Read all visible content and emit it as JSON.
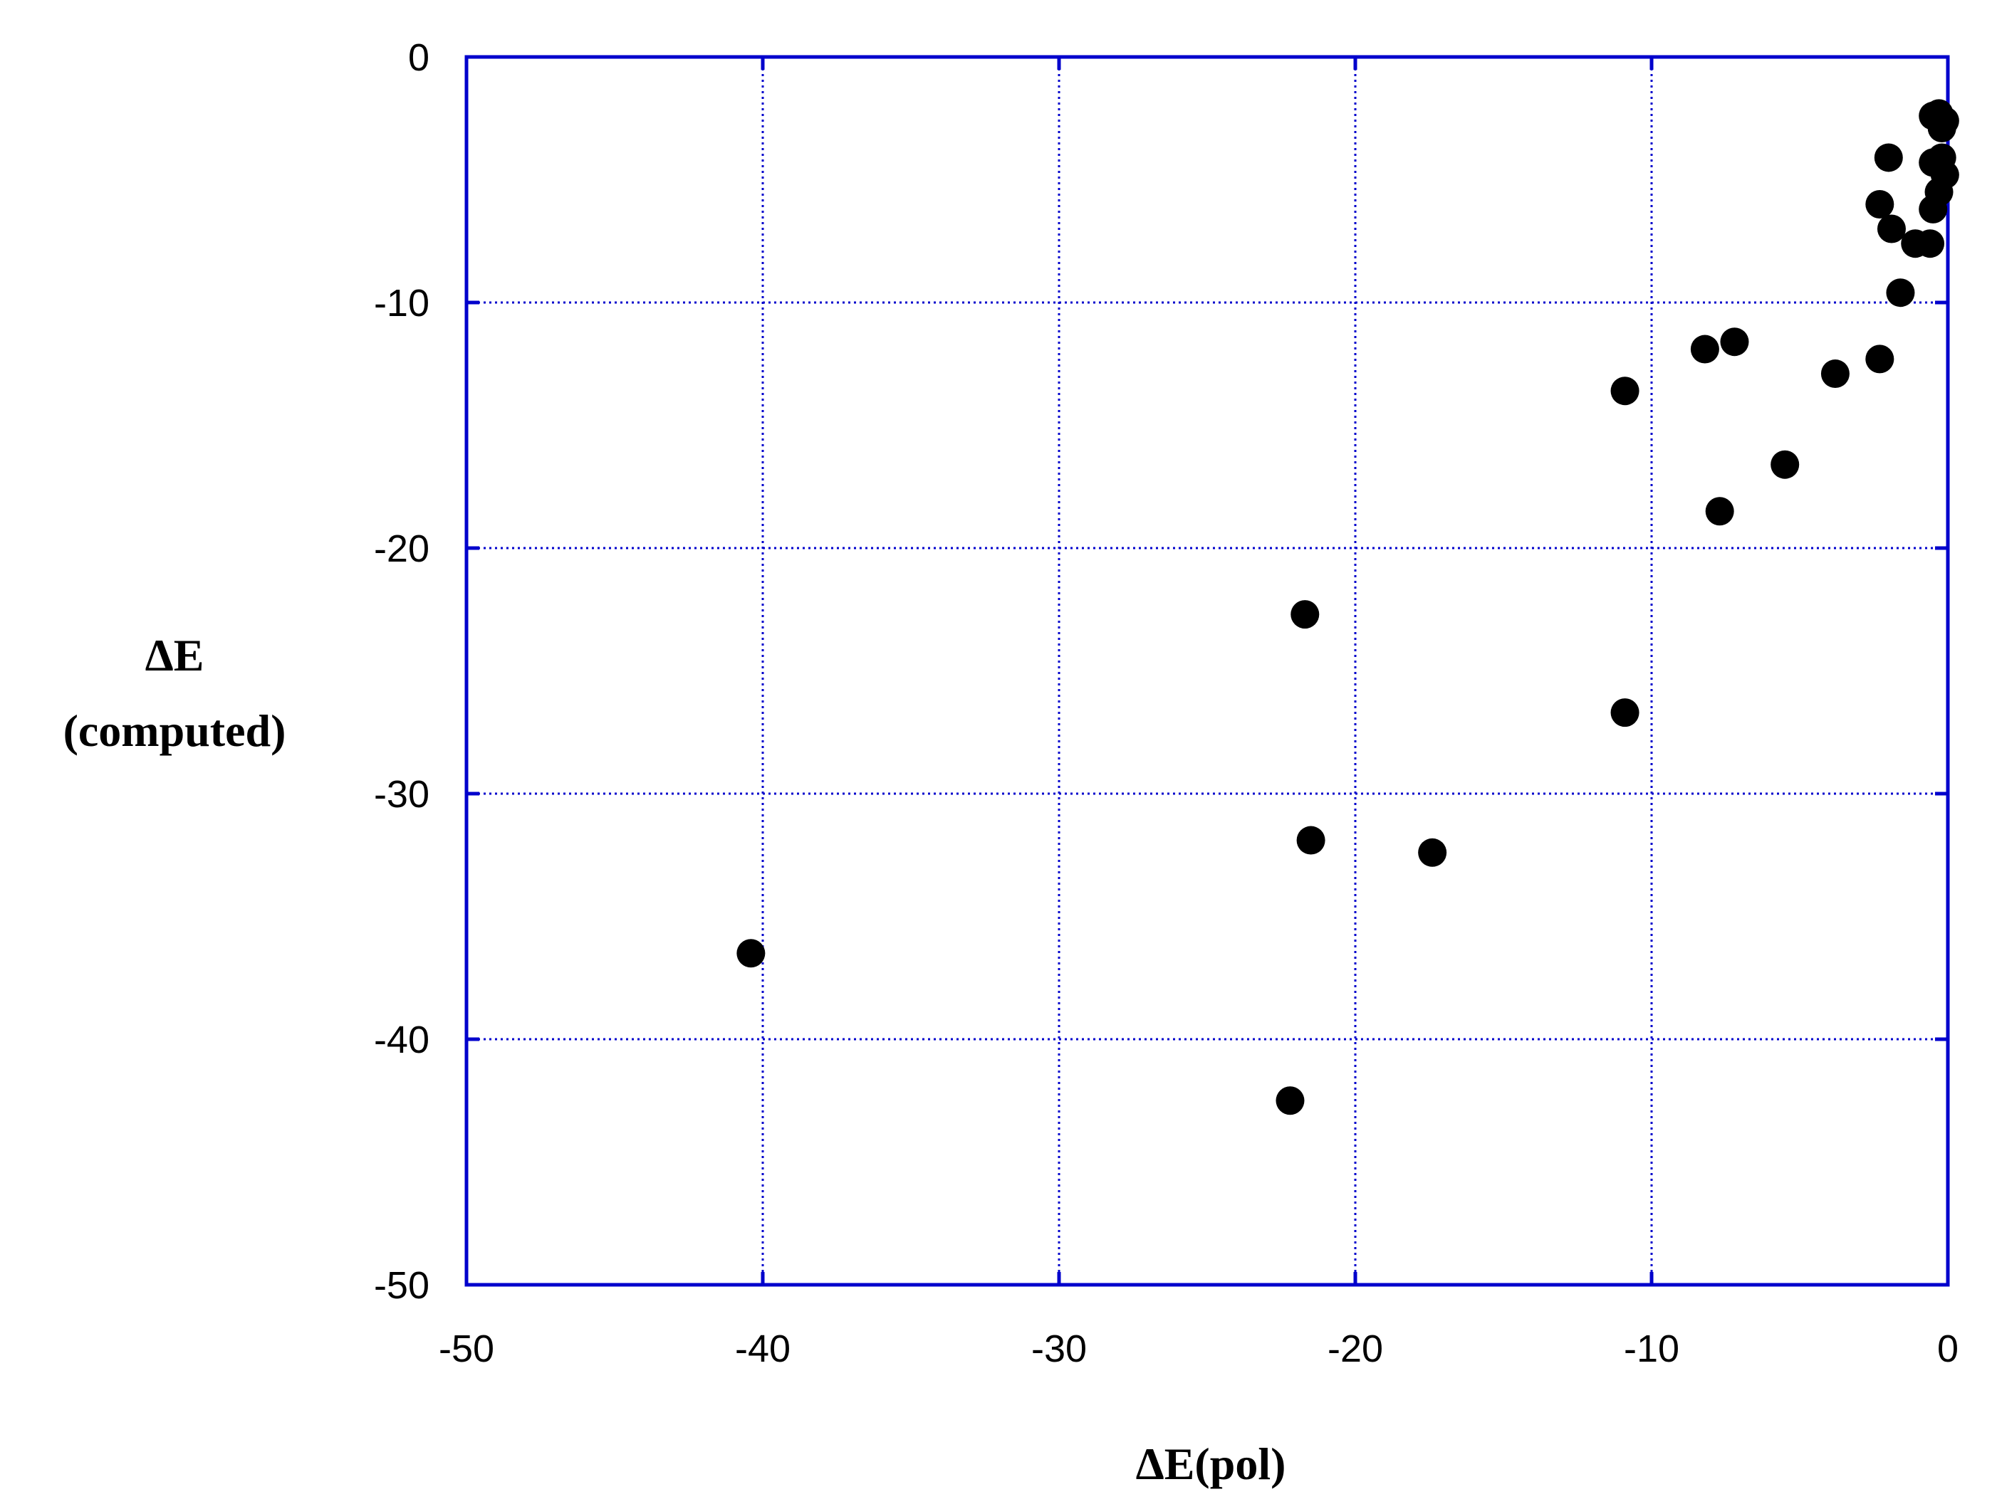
{
  "chart_data": {
    "type": "scatter",
    "title": "",
    "xlabel": "ΔE(pol)",
    "ylabel_lines": [
      "ΔE",
      "(computed)"
    ],
    "xlim": [
      -50,
      0
    ],
    "ylim": [
      -50,
      0
    ],
    "xticks": [
      -50,
      -40,
      -30,
      -20,
      -10,
      0
    ],
    "yticks": [
      0,
      -10,
      -20,
      -30,
      -40,
      -50
    ],
    "grid": true,
    "colors": {
      "axis": "#0000cc",
      "grid": "#0000cc",
      "marker": "#000000"
    },
    "points": [
      {
        "x": -0.3,
        "y": -2.3
      },
      {
        "x": -0.5,
        "y": -2.4
      },
      {
        "x": -0.1,
        "y": -2.6
      },
      {
        "x": -0.2,
        "y": -2.9
      },
      {
        "x": -0.2,
        "y": -4.1
      },
      {
        "x": -0.5,
        "y": -4.3
      },
      {
        "x": -0.1,
        "y": -4.8
      },
      {
        "x": -0.3,
        "y": -5.5
      },
      {
        "x": -0.5,
        "y": -6.2
      },
      {
        "x": -2.0,
        "y": -4.1
      },
      {
        "x": -2.3,
        "y": -6.0
      },
      {
        "x": -1.9,
        "y": -7.0
      },
      {
        "x": -1.1,
        "y": -7.6
      },
      {
        "x": -0.6,
        "y": -7.6
      },
      {
        "x": -1.6,
        "y": -9.6
      },
      {
        "x": -2.3,
        "y": -12.3
      },
      {
        "x": -3.8,
        "y": -12.9
      },
      {
        "x": -5.5,
        "y": -16.6
      },
      {
        "x": -7.2,
        "y": -11.6
      },
      {
        "x": -8.2,
        "y": -11.9
      },
      {
        "x": -7.7,
        "y": -18.5
      },
      {
        "x": -10.9,
        "y": -13.6
      },
      {
        "x": -10.9,
        "y": -26.7
      },
      {
        "x": -17.4,
        "y": -32.4
      },
      {
        "x": -21.7,
        "y": -22.7
      },
      {
        "x": -21.5,
        "y": -31.9
      },
      {
        "x": -22.2,
        "y": -42.5
      },
      {
        "x": -40.4,
        "y": -36.5
      }
    ]
  }
}
